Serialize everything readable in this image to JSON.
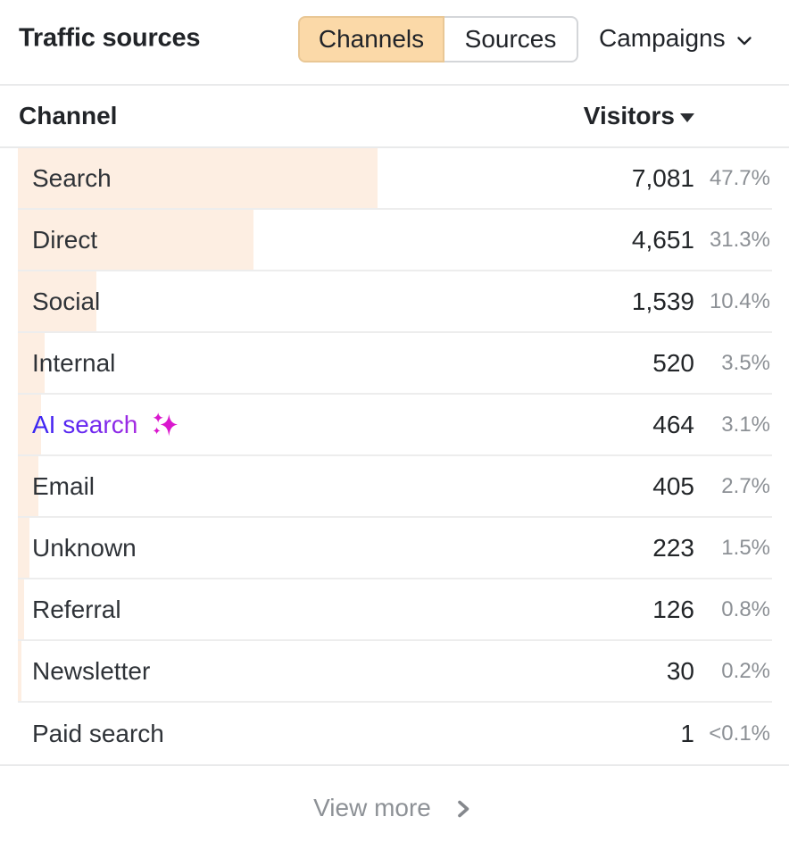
{
  "widget": {
    "title": "Traffic sources",
    "tabs": [
      {
        "label": "Channels",
        "active": true
      },
      {
        "label": "Sources",
        "active": false
      }
    ],
    "campaigns_label": "Campaigns"
  },
  "table": {
    "columns": {
      "channel": "Channel",
      "visitors": "Visitors"
    },
    "sort": {
      "column": "Visitors",
      "direction": "desc"
    },
    "rows": [
      {
        "channel": "Search",
        "visitors": "7,081",
        "percent": "47.7%",
        "bar_pct": 47.7,
        "ai": false
      },
      {
        "channel": "Direct",
        "visitors": "4,651",
        "percent": "31.3%",
        "bar_pct": 31.3,
        "ai": false
      },
      {
        "channel": "Social",
        "visitors": "1,539",
        "percent": "10.4%",
        "bar_pct": 10.4,
        "ai": false
      },
      {
        "channel": "Internal",
        "visitors": "520",
        "percent": "3.5%",
        "bar_pct": 3.5,
        "ai": false
      },
      {
        "channel": "AI search",
        "visitors": "464",
        "percent": "3.1%",
        "bar_pct": 3.1,
        "ai": true
      },
      {
        "channel": "Email",
        "visitors": "405",
        "percent": "2.7%",
        "bar_pct": 2.7,
        "ai": false
      },
      {
        "channel": "Unknown",
        "visitors": "223",
        "percent": "1.5%",
        "bar_pct": 1.5,
        "ai": false
      },
      {
        "channel": "Referral",
        "visitors": "126",
        "percent": "0.8%",
        "bar_pct": 0.8,
        "ai": false
      },
      {
        "channel": "Newsletter",
        "visitors": "30",
        "percent": "0.2%",
        "bar_pct": 0.2,
        "ai": false
      },
      {
        "channel": "Paid search",
        "visitors": "1",
        "percent": "<0.1%",
        "bar_pct": 0,
        "ai": false
      }
    ]
  },
  "footer": {
    "view_more_label": "View more"
  },
  "colors": {
    "active_tab_bg": "#fbd9a8",
    "bar_fill": "#fdeee2",
    "divider": "#e9eaeb",
    "row_divider": "rgba(28,25,23,0.08)",
    "text_dark": "#222528",
    "text_muted": "#8c9095",
    "ai_gradient_start": "#3525f2",
    "ai_gradient_end": "#a62ae0",
    "sparkles": "#da18ce"
  }
}
